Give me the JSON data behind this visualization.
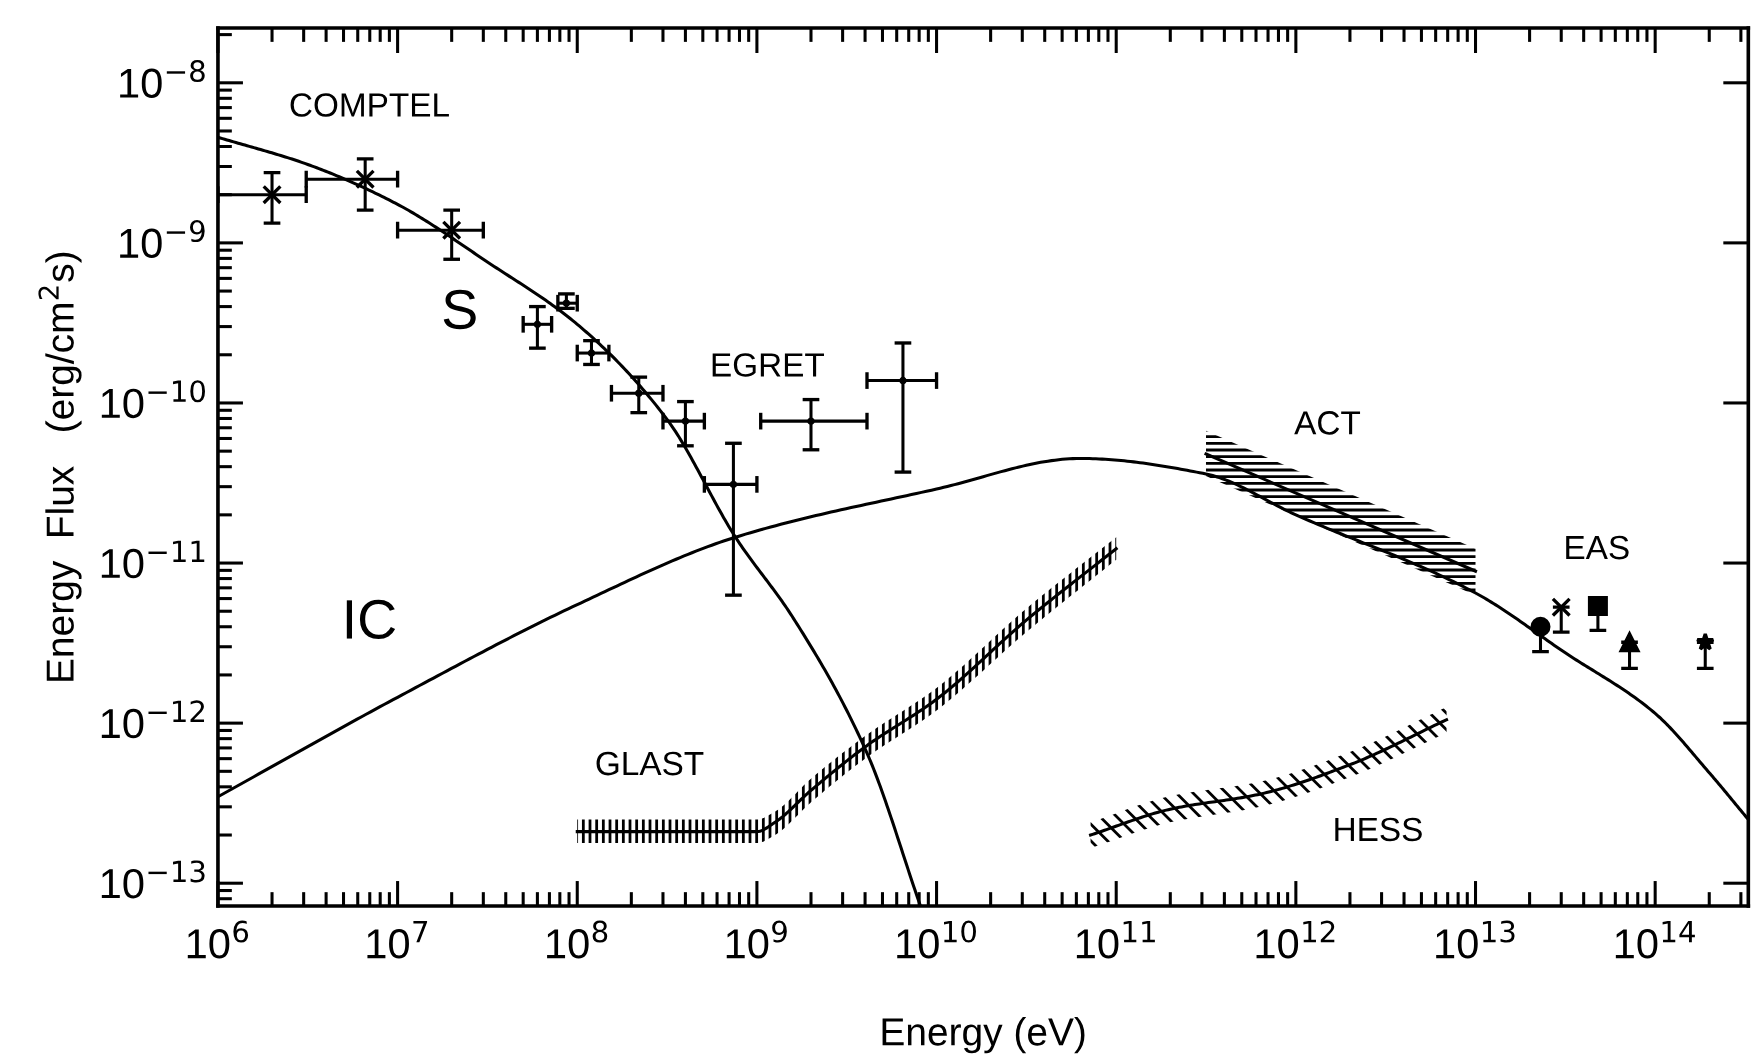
{
  "chart_data": {
    "type": "line",
    "xlabel": "Energy (eV)",
    "ylabel": "Energy  Flux   (erg/cm$^{2}$s)",
    "log": "xy",
    "grid": false,
    "xlim": [
      1000000.0,
      330000000000000.0
    ],
    "ylim": [
      7.2e-14,
      2.2e-08
    ],
    "xticks": [
      {
        "value": 1000000.0,
        "label": "10$^{6}$"
      },
      {
        "value": 10000000.0,
        "label": "10$^{7}$"
      },
      {
        "value": 100000000.0,
        "label": "10$^{8}$"
      },
      {
        "value": 1000000000.0,
        "label": "10$^{9}$"
      },
      {
        "value": 10000000000.0,
        "label": "10$^{10}$"
      },
      {
        "value": 100000000000.0,
        "label": "10$^{11}$"
      },
      {
        "value": 1000000000000.0,
        "label": "10$^{12}$"
      },
      {
        "value": 10000000000000.0,
        "label": "10$^{13}$"
      },
      {
        "value": 100000000000000.0,
        "label": "10$^{14}$"
      }
    ],
    "yticks": [
      {
        "value": 1e-13,
        "label": "10$^{−13}$"
      },
      {
        "value": 1e-12,
        "label": "10$^{−12}$"
      },
      {
        "value": 1e-11,
        "label": "10$^{−11}$"
      },
      {
        "value": 1e-10,
        "label": "10$^{−10}$"
      },
      {
        "value": 1e-09,
        "label": "10$^{−9}$"
      },
      {
        "value": 1e-08,
        "label": "10$^{−8}$"
      }
    ],
    "series": [
      {
        "color": "#000000",
        "x": [
          1000000.0,
          3160000.0,
          10000000.0,
          31600000.0,
          100000000.0,
          316000000.0,
          760000000.0,
          1600000000.0,
          4100000000.0,
          8100000000.0
        ],
        "values": [
          4.57e-09,
          3.09e-09,
          1.74e-09,
          7.6e-10,
          3.1e-10,
          7.9e-11,
          1.45e-11,
          4.5e-12,
          6.5e-13,
          7.3e-14
        ]
      },
      {
        "color": "#000000",
        "x": [
          1000000.0,
          10000000.0,
          100000000.0,
          760000000.0,
          10000000000.0,
          63000000000.0,
          316000000000.0,
          1000000000000.0,
          10000000000000.0,
          31600000000000.0,
          100000000000000.0,
          200000000000000.0,
          330000000000000.0
        ],
        "values": [
          3.47e-13,
          1.45e-12,
          5.5e-12,
          1.45e-11,
          2.9e-11,
          4.5e-11,
          3.6e-11,
          2e-11,
          6.5e-12,
          2.75e-12,
          1.15e-12,
          4.9e-13,
          2.5e-13
        ]
      },
      {
        "color": "#000000",
        "x": [
          100000000.0,
          316000000.0,
          1000000000.0,
          1260000000.0,
          2000000000.0,
          4000000000.0,
          10000000000.0,
          31600000000.0,
          100000000000.0
        ],
        "values": [
          2.1e-13,
          2.1e-13,
          2.1e-13,
          2.4e-13,
          3.8e-13,
          7.1e-13,
          1.41e-12,
          4.4e-12,
          1.23e-11
        ],
        "lower": [
          1.78e-13,
          1.78e-13,
          1.78e-13,
          2e-13,
          3.2e-13,
          6e-13,
          1.2e-12,
          3.7e-12,
          1.05e-11
        ],
        "upper": [
          2.5e-13,
          2.5e-13,
          2.5e-13,
          2.8e-13,
          4.5e-13,
          8.3e-13,
          1.66e-12,
          5.2e-12,
          1.45e-11
        ]
      },
      {
        "color": "#000000",
        "x": [
          72000000000.0,
          200000000000.0,
          630000000000.0,
          2000000000000.0,
          6900000000000.0
        ],
        "values": [
          2e-13,
          2.9e-13,
          3.6e-13,
          5.5e-13,
          1.05e-12
        ],
        "lower": [
          1.66e-13,
          2.4e-13,
          3e-13,
          4.6e-13,
          8.7e-13
        ],
        "upper": [
          2.4e-13,
          3.5e-13,
          4.3e-13,
          6.6e-13,
          1.26e-12
        ]
      },
      {
        "color": "#000000",
        "x": [
          316000000000.0,
          10000000000000.0
        ],
        "values": [
          4.8e-11,
          8.9e-12
        ],
        "lower": [
          3.5e-11,
          6.3e-12
        ],
        "upper": [
          6.7e-11,
          1.23e-11
        ]
      },
      {
        "type": "scatter",
        "color": "#000000",
        "marker": "cross",
        "x": [
          2000000.0,
          6600000.0,
          20000000.0
        ],
        "values": [
          2e-09,
          2.5e-09,
          1.2e-09
        ],
        "xerrors": [
          [
            1000000.0,
            3100000.0
          ],
          [
            3100000.0,
            10000000.0
          ],
          [
            10000000.0,
            30000000.0
          ]
        ],
        "errors": [
          [
            1.33e-09,
            2.75e-09
          ],
          [
            1.6e-09,
            3.35e-09
          ],
          [
            7.9e-10,
            1.6e-09
          ]
        ]
      },
      {
        "type": "scatter",
        "color": "#000000",
        "x": [
          60000000.0,
          87000000.0,
          120000000.0,
          220000000.0,
          400000000.0,
          740000000.0,
          2000000000.0,
          6500000000.0
        ],
        "values": [
          3.1e-10,
          4.2e-10,
          2.05e-10,
          1.15e-10,
          7.7e-11,
          3.1e-11,
          7.7e-11,
          1.38e-10
        ],
        "xerrors": [
          [
            50000000.0,
            72000000.0
          ],
          [
            78000000.0,
            100000000.0
          ],
          [
            100000000.0,
            150000000.0
          ],
          [
            155000000.0,
            300000000.0
          ],
          [
            300000000.0,
            510000000.0
          ],
          [
            510000000.0,
            1000000000.0
          ],
          [
            1050000000.0,
            4100000000.0
          ],
          [
            4100000000.0,
            10000000000.0
          ]
        ],
        "errors": [
          [
            2.2e-10,
            4e-10
          ],
          [
            3.9e-10,
            4.8e-10
          ],
          [
            1.74e-10,
            2.45e-10
          ],
          [
            8.7e-11,
            1.45e-10
          ],
          [
            5.4e-11,
            1.02e-10
          ],
          [
            6.3e-12,
            5.6e-11
          ],
          [
            5.1e-11,
            1.05e-10
          ],
          [
            3.7e-11,
            2.37e-10
          ]
        ]
      },
      {
        "type": "scatter",
        "color": "#000000",
        "marker": "circle",
        "x": [
          23000000000000.0
        ],
        "values": [
          4e-12
        ],
        "errors": [
          [
            2.8e-12,
            4e-12
          ]
        ]
      },
      {
        "type": "scatter",
        "color": "#000000",
        "marker": "cross",
        "x": [
          30000000000000.0
        ],
        "values": [
          5.3e-12
        ],
        "errors": [
          [
            3.7e-12,
            5.3e-12
          ]
        ]
      },
      {
        "type": "scatter",
        "color": "#000000",
        "marker": "square",
        "x": [
          48000000000000.0
        ],
        "values": [
          5.4e-12
        ],
        "errors": [
          [
            3.8e-12,
            5.4e-12
          ]
        ]
      },
      {
        "type": "scatter",
        "color": "#000000",
        "marker": "triangle",
        "x": [
          72000000000000.0
        ],
        "values": [
          3.2e-12
        ],
        "errors": [
          [
            2.2e-12,
            3.2e-12
          ]
        ]
      },
      {
        "type": "scatter",
        "color": "#000000",
        "marker": "star",
        "x": [
          190000000000000.0
        ],
        "values": [
          3.2e-12
        ],
        "errors": [
          [
            2.2e-12,
            3.2e-12
          ]
        ]
      }
    ],
    "annotations": [
      "COMPTEL",
      "S",
      "EGRET",
      "ACT",
      "IC",
      "GLAST",
      "HESS",
      "EAS"
    ]
  }
}
